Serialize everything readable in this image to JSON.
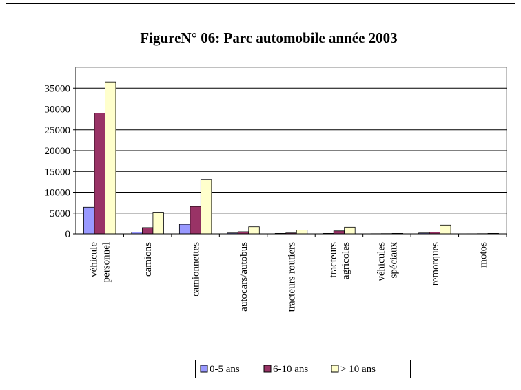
{
  "chart_data": {
    "type": "bar",
    "title": "FigureN° 06: Parc automobile année 2003",
    "categories": [
      "véhicule\npersonnel",
      "camions",
      "camionnettes",
      "autocars/autobus",
      "tracteurs routiers",
      "tracteurs\nagricoles",
      "véhicules\nspéciaux",
      "remorques",
      "motos"
    ],
    "series": [
      {
        "name": "0-5 ans",
        "color": "#9999ff",
        "values": [
          6400,
          400,
          2300,
          200,
          100,
          100,
          30,
          200,
          20
        ]
      },
      {
        "name": "6-10 ans",
        "color": "#993366",
        "values": [
          29000,
          1500,
          6600,
          500,
          200,
          700,
          50,
          400,
          40
        ]
      },
      {
        "name": "> 10 ans",
        "color": "#ffffcc",
        "values": [
          36500,
          5200,
          13100,
          1700,
          900,
          1600,
          100,
          2100,
          100
        ]
      }
    ],
    "ylim": [
      0,
      40000
    ],
    "yticks": [
      0,
      5000,
      10000,
      15000,
      20000,
      25000,
      30000,
      35000
    ],
    "grid": true,
    "legend": "bottom"
  }
}
